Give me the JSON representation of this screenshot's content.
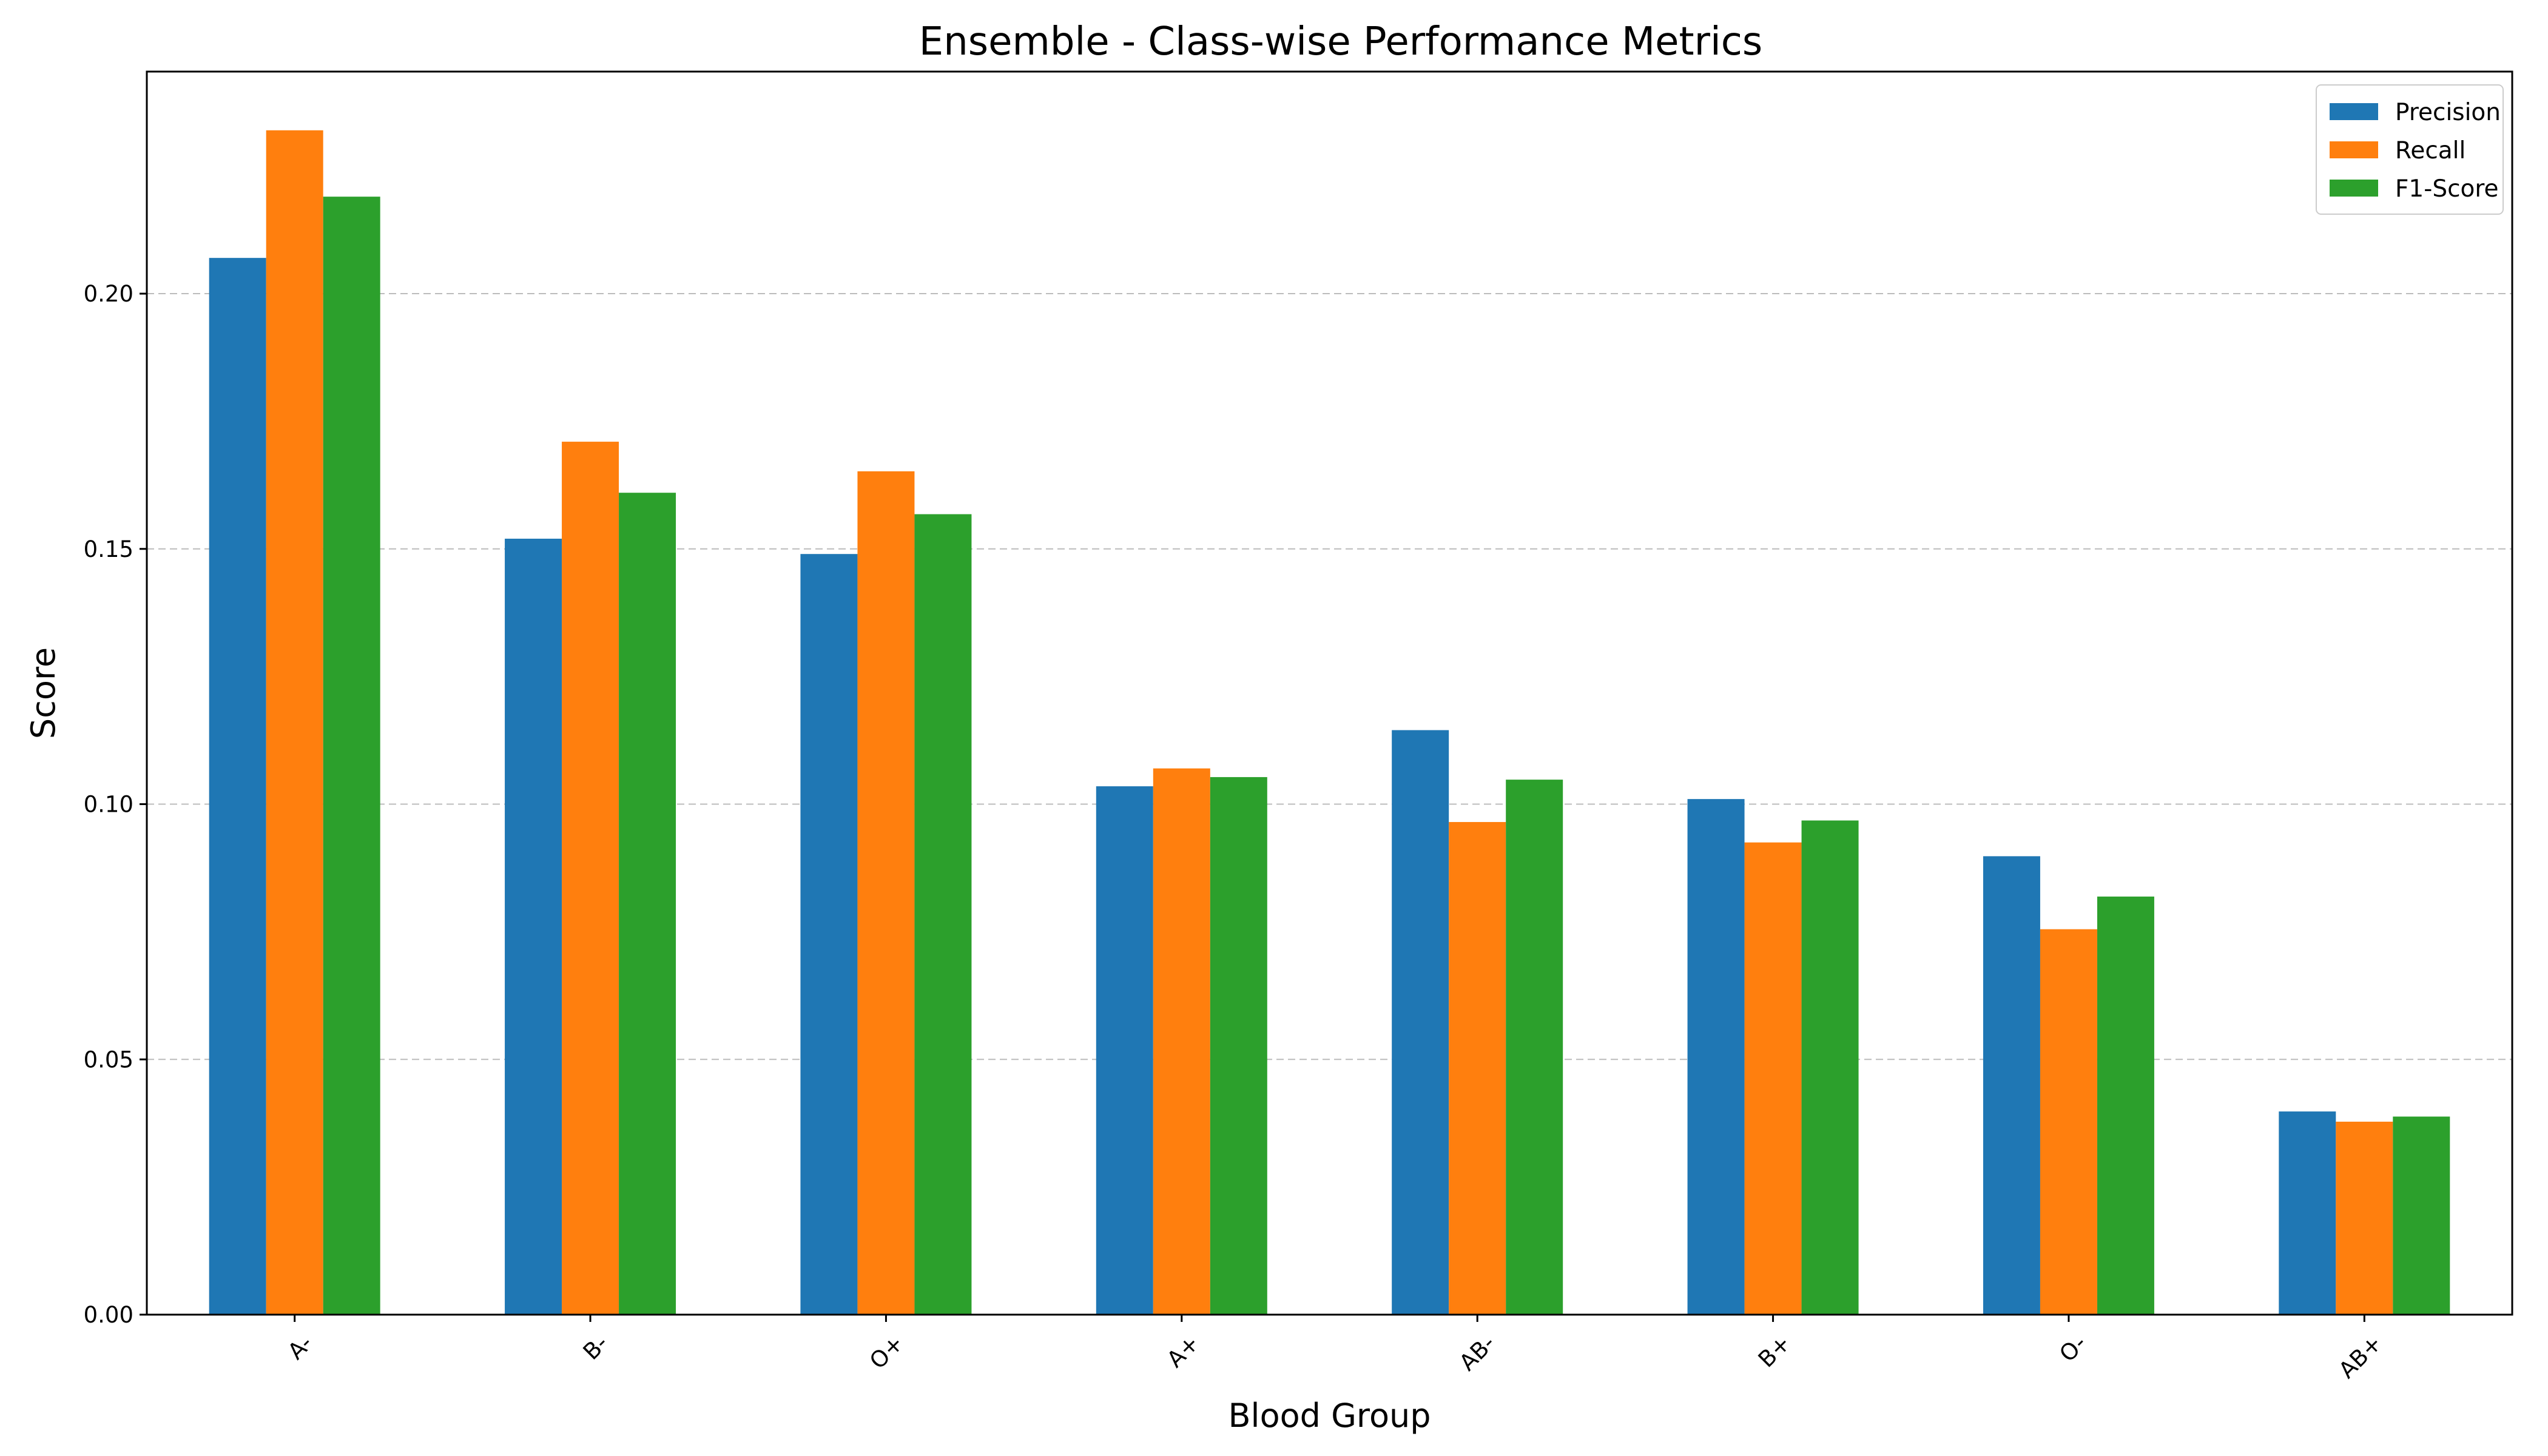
{
  "chart_data": {
    "type": "bar",
    "title": "Ensemble - Class-wise Performance Metrics",
    "xlabel": "Blood Group",
    "ylabel": "Score",
    "categories": [
      "A-",
      "B-",
      "O+",
      "A+",
      "AB-",
      "B+",
      "O-",
      "AB+"
    ],
    "series": [
      {
        "name": "Precision",
        "color": "#1f77b4",
        "values": [
          0.207,
          0.152,
          0.149,
          0.1035,
          0.1145,
          0.101,
          0.0898,
          0.0398
        ]
      },
      {
        "name": "Recall",
        "color": "#ff7f0e",
        "values": [
          0.232,
          0.171,
          0.1652,
          0.107,
          0.0965,
          0.0925,
          0.0755,
          0.0378
        ]
      },
      {
        "name": "F1-Score",
        "color": "#2ca02c",
        "values": [
          0.219,
          0.161,
          0.1568,
          0.1053,
          0.1048,
          0.0968,
          0.0819,
          0.0388
        ]
      }
    ],
    "ylim": [
      0,
      0.2435
    ],
    "yticks": [
      0.0,
      0.05,
      0.1,
      0.15,
      0.2
    ],
    "ytick_labels": [
      "0.00",
      "0.05",
      "0.10",
      "0.15",
      "0.20"
    ],
    "grid": "y-dashed",
    "legend_position": "top-right",
    "xtick_rotation": 45
  }
}
